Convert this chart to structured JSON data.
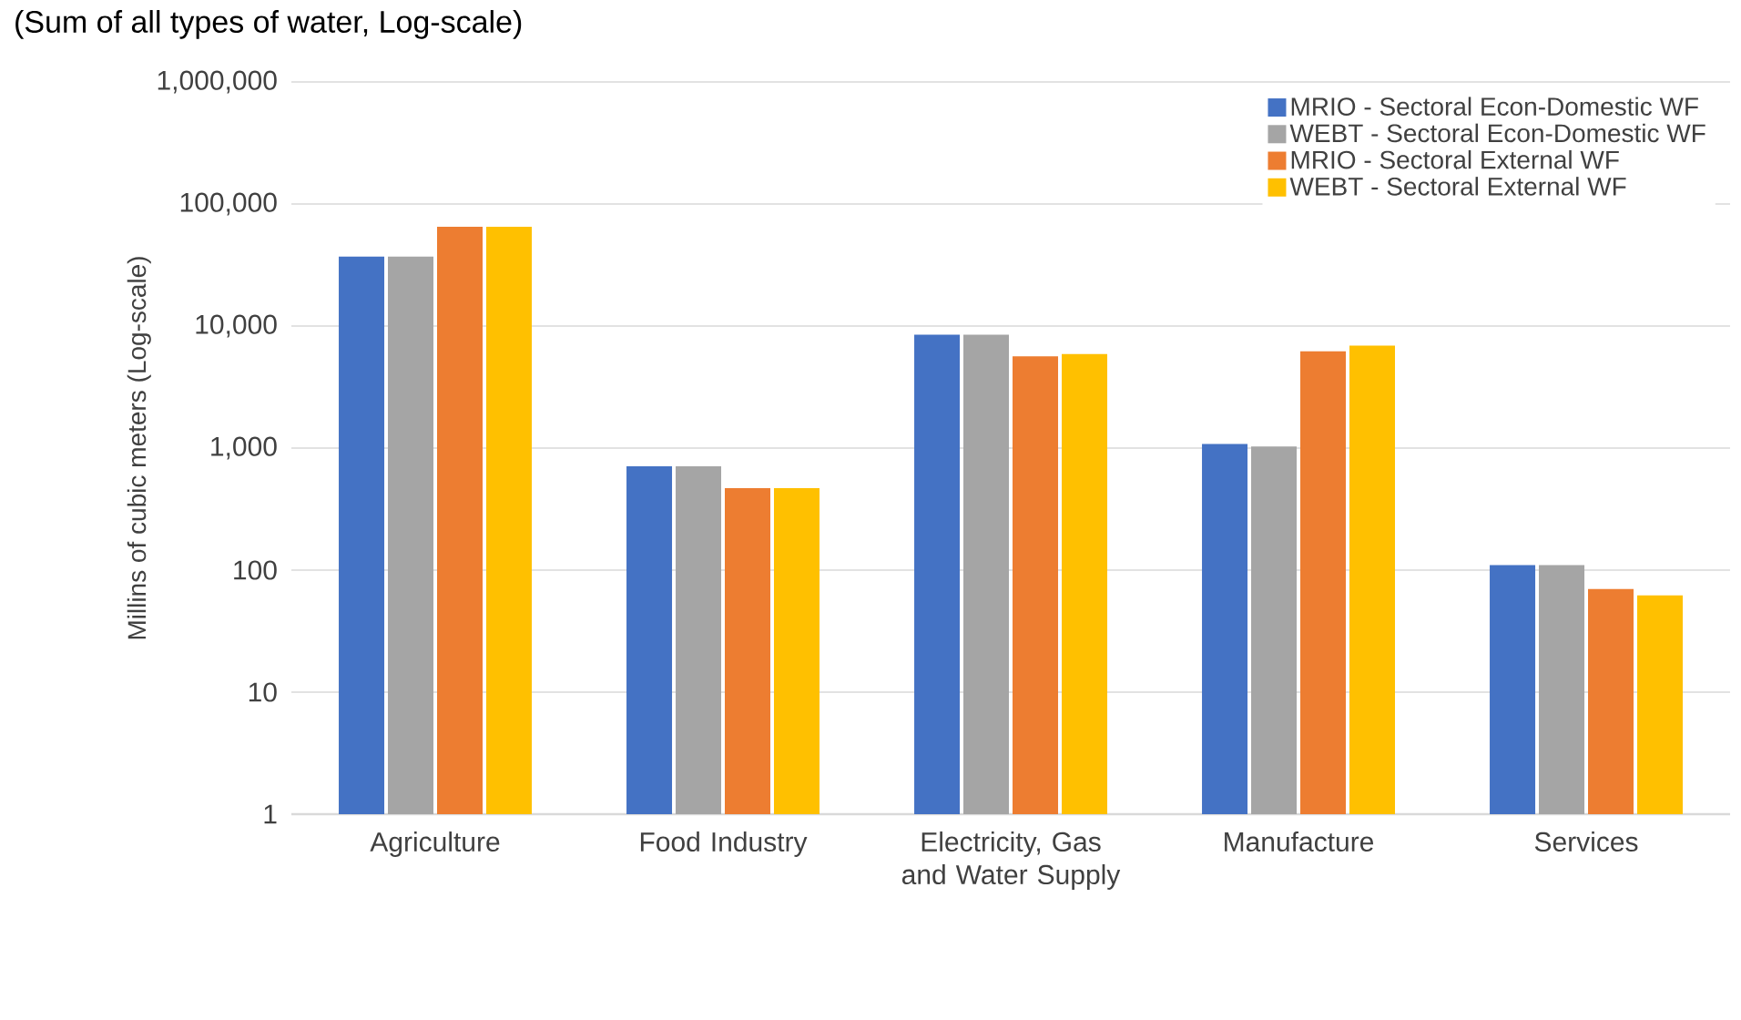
{
  "chart_data": {
    "type": "bar",
    "title": "(Sum of all types of water, Log-scale)",
    "ylabel": "Millins of cubic meters (Log-scale)",
    "categories": [
      "Agriculture",
      "Food Industry",
      "Electricity, Gas and Water Supply",
      "Manufacture",
      "Services"
    ],
    "series": [
      {
        "name": "MRIO - Sectoral Econ-Domestic WF",
        "color": "#4472c4",
        "values": [
          37000,
          710,
          8500,
          1080,
          110
        ]
      },
      {
        "name": "WEBT - Sectoral Econ-Domestic WF",
        "color": "#a5a5a5",
        "values": [
          37000,
          710,
          8500,
          1030,
          110
        ]
      },
      {
        "name": "MRIO - Sectoral External WF",
        "color": "#ed7d31",
        "values": [
          65000,
          470,
          5650,
          6200,
          70
        ]
      },
      {
        "name": "WEBT - Sectoral External WF",
        "color": "#ffc000",
        "values": [
          65000,
          470,
          5900,
          6900,
          62
        ]
      }
    ],
    "log": true,
    "ylim": [
      1,
      1000000
    ],
    "yticks": [
      1,
      10,
      100,
      {
        "value": 1000,
        "label": "1,000"
      },
      {
        "value": 10000,
        "label": "10,000"
      },
      {
        "value": 100000,
        "label": "100,000"
      },
      {
        "value": 1000000,
        "label": "1,000,000"
      }
    ],
    "grid": "y",
    "legend": "top right"
  }
}
